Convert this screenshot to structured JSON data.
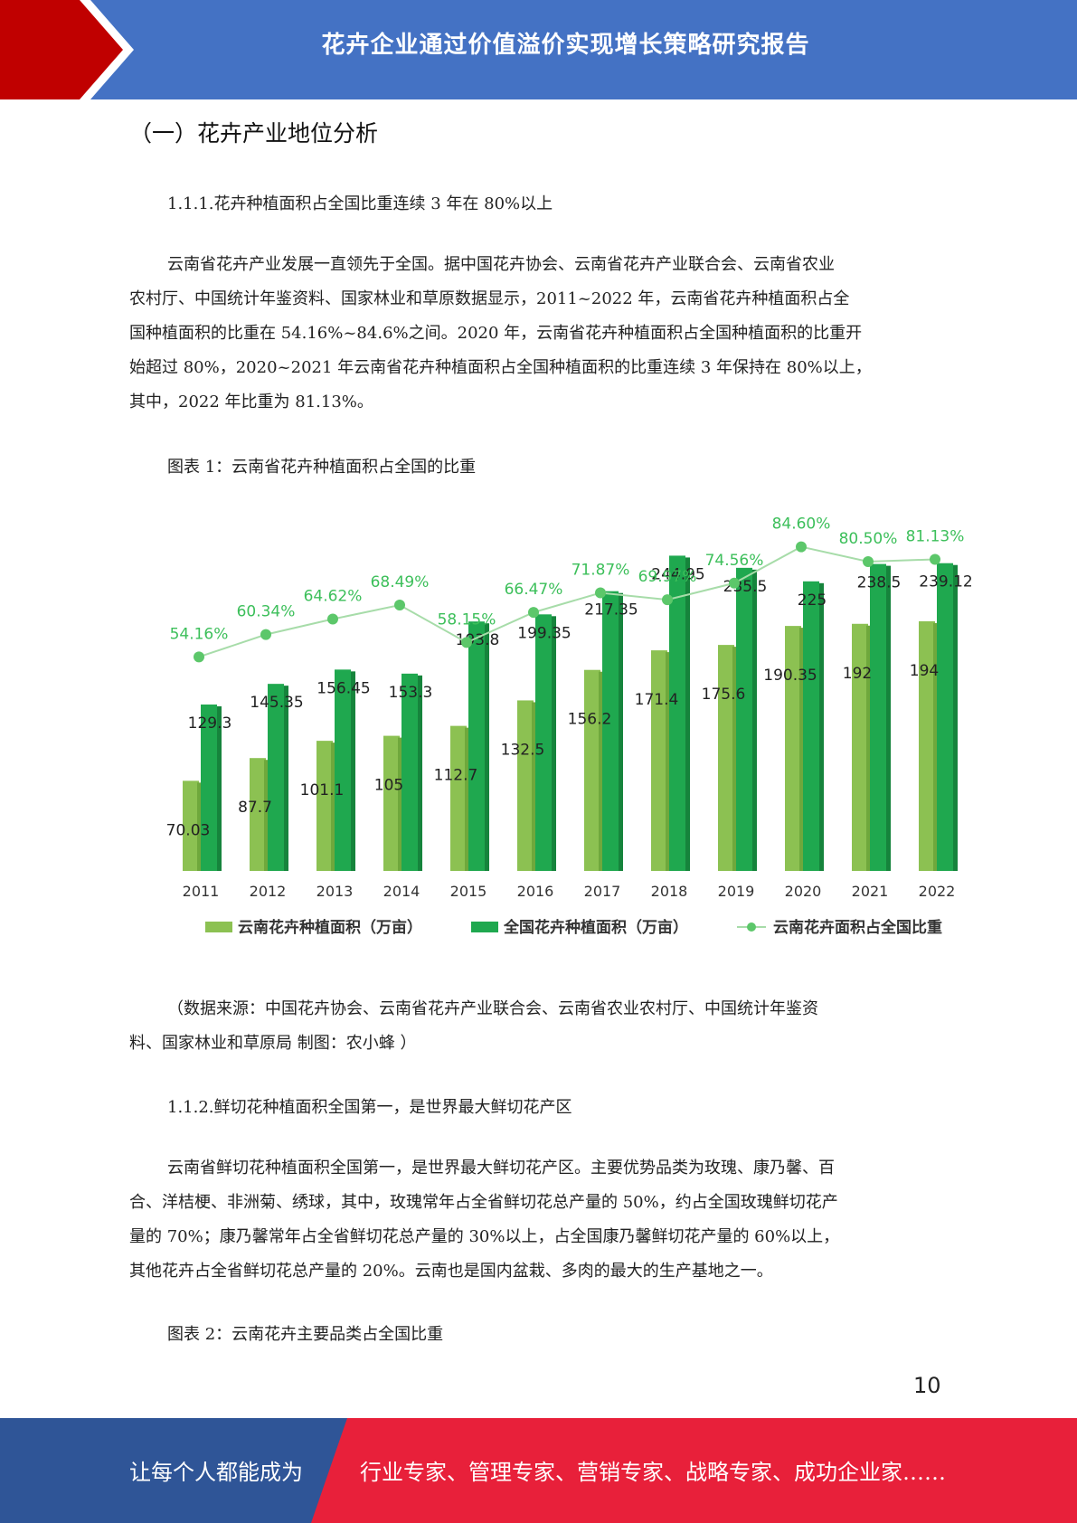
{
  "header": {
    "title": "花卉企业通过价值溢价实现增长策略研究报告"
  },
  "section": {
    "title": "（一）花卉产业地位分析"
  },
  "subsection1": {
    "heading": "1.1.1.花卉种植面积占全国比重连续 3 年在 80%以上"
  },
  "paragraph1": {
    "lines": [
      "云南省花卉产业发展一直领先于全国。据中国花卉协会、云南省花卉产业联合会、云南省农业",
      "农村厅、中国统计年鉴资料、国家林业和草原数据显示，2011~2022 年，云南省花卉种植面积占全",
      "国种植面积的比重在 54.16%~84.6%之间。2020 年，云南省花卉种植面积占全国种植面积的比重开",
      "始超过 80%，2020~2021 年云南省花卉种植面积占全国种植面积的比重连续 3 年保持在 80%以上，",
      "其中，2022 年比重为 81.13%。"
    ]
  },
  "figure1": {
    "caption": "图表 1：云南省花卉种植面积占全国的比重"
  },
  "chart_data": {
    "type": "bar",
    "title": "",
    "categories": [
      "2011",
      "2012",
      "2013",
      "2014",
      "2015",
      "2016",
      "2017",
      "2018",
      "2019",
      "2020",
      "2021",
      "2022"
    ],
    "series": [
      {
        "name": "云南花卉种植面积（万亩）",
        "type": "bar",
        "color": "#8cc152",
        "values": [
          70.03,
          87.7,
          101.1,
          105,
          112.7,
          132.5,
          156.2,
          171.4,
          175.6,
          190.35,
          192,
          194
        ],
        "labels": [
          "70.03",
          "87.7",
          "101.1",
          "105",
          "112.7",
          "132.5",
          "156.2",
          "171.4",
          "175.6",
          "190.35",
          "192",
          "194"
        ]
      },
      {
        "name": "全国花卉种植面积（万亩）",
        "type": "bar",
        "color": "#1fa84f",
        "values": [
          129.3,
          145.35,
          156.45,
          153.3,
          193.8,
          199.35,
          217.35,
          244.95,
          235.5,
          225,
          238.5,
          239.12
        ],
        "labels": [
          "129.3",
          "145.35",
          "156.45",
          "153.3",
          "193.8",
          "199.35",
          "217.35",
          "244.95",
          "235.5",
          "225",
          "238.5",
          "239.12"
        ]
      },
      {
        "name": "云南花卉面积占全国比重",
        "type": "line",
        "color": "#5cc76a",
        "values": [
          54.16,
          60.34,
          64.62,
          68.49,
          58.15,
          66.47,
          71.87,
          69.97,
          74.56,
          84.6,
          80.5,
          81.13
        ],
        "labels": [
          "54.16%",
          "60.34%",
          "64.62%",
          "68.49%",
          "58.15%",
          "66.47%",
          "71.87%",
          "69.97%",
          "74.56%",
          "84.60%",
          "80.50%",
          "81.13%"
        ]
      }
    ],
    "bar_ylim": [
      0,
      260
    ],
    "line_ylim": [
      0,
      90
    ],
    "legend": "bottom",
    "grid": false
  },
  "source_note": {
    "lines": [
      "（数据来源：中国花卉协会、云南省花卉产业联合会、云南省农业农村厅、中国统计年鉴资",
      "料、国家林业和草原局  制图：农小蜂  ）"
    ]
  },
  "subsection2": {
    "heading": "1.1.2.鲜切花种植面积全国第一，是世界最大鲜切花产区"
  },
  "paragraph2": {
    "lines": [
      "云南省鲜切花种植面积全国第一，是世界最大鲜切花产区。主要优势品类为玫瑰、康乃馨、百",
      "合、洋桔梗、非洲菊、绣球，其中，玫瑰常年占全省鲜切花总产量的 50%，约占全国玫瑰鲜切花产",
      "量的 70%；康乃馨常年占全省鲜切花总产量的 30%以上，占全国康乃馨鲜切花产量的 60%以上，",
      "其他花卉占全省鲜切花总产量的 20%。云南也是国内盆栽、多肉的最大的生产基地之一。"
    ]
  },
  "figure2": {
    "caption": "图表 2：云南花卉主要品类占全国比重"
  },
  "page": {
    "number": "10"
  },
  "footer": {
    "left_text": "让每个人都能成为",
    "right_text": "行业专家、管理专家、营销专家、战略专家、成功企业家……"
  },
  "colors": {
    "header_blue": "#4472c4",
    "header_red": "#c00000",
    "footer_blue": "#2f5597",
    "footer_red": "#e8203a"
  }
}
